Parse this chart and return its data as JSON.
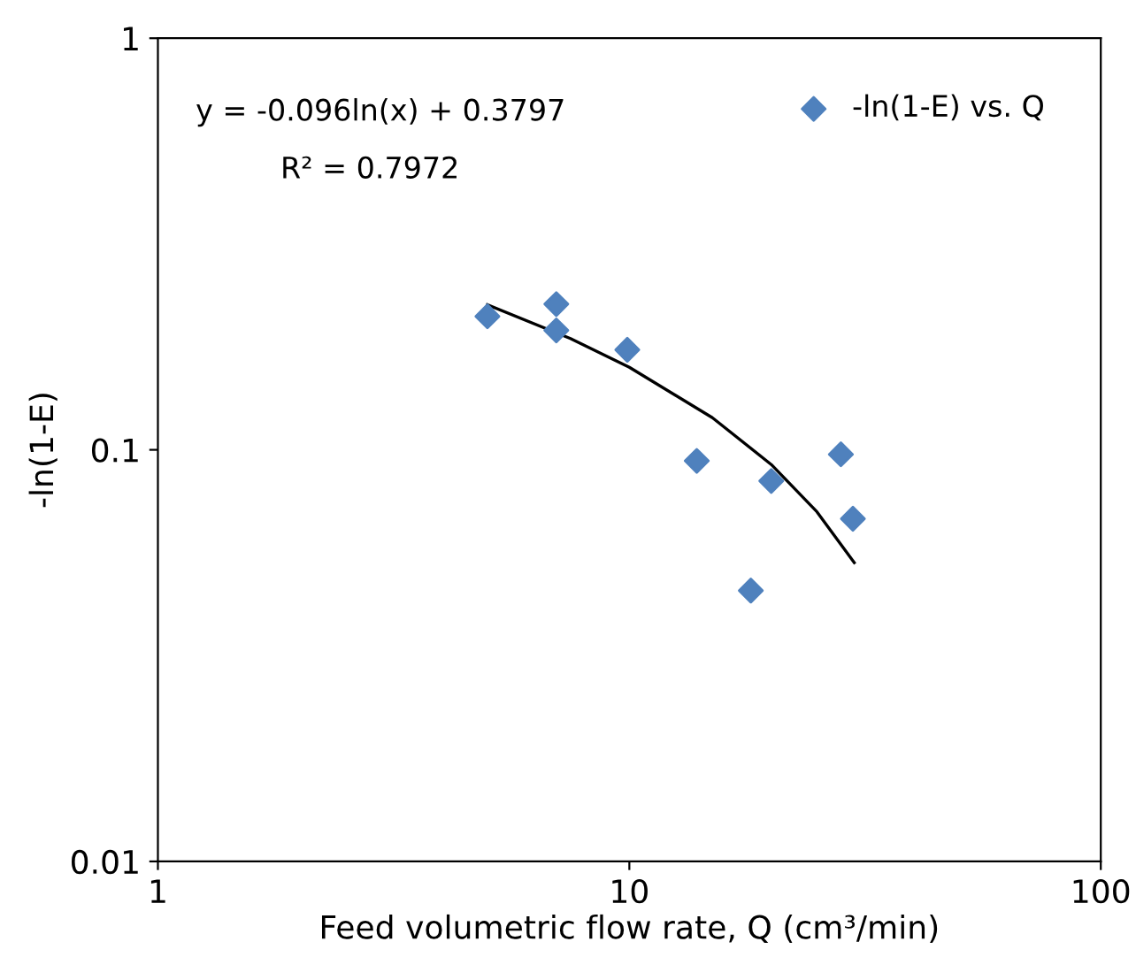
{
  "chart_data": {
    "type": "scatter",
    "xlabel": "Feed volumetric flow rate, Q (cm³/min)",
    "ylabel": "-ln(1-E)",
    "log": "xy",
    "xlim": [
      1,
      100
    ],
    "xticks": [
      1,
      10,
      100
    ],
    "ylim": [
      0.01,
      1
    ],
    "yticks": [
      0.01,
      0.1,
      1
    ],
    "grid": false,
    "legend": "top right",
    "marker": "diamond",
    "series": [
      {
        "name": "-ln(1-E) vs. Q",
        "color": "#4f81bd",
        "x": [
          5.0,
          7.0,
          7.0,
          9.9,
          13.9,
          18.1,
          20.0,
          28.1,
          29.8
        ],
        "values": [
          0.211,
          0.226,
          0.195,
          0.175,
          0.094,
          0.0455,
          0.084,
          0.0975,
          0.068
        ]
      },
      {
        "type": "line",
        "color": "#000000",
        "line_style": "solid",
        "marker": "none",
        "x": [
          5,
          7.5,
          10,
          15,
          20,
          25,
          30
        ],
        "values": [
          0.2252,
          0.1863,
          0.1587,
          0.1197,
          0.0921,
          0.0707,
          0.0532
        ]
      }
    ],
    "annotations": [
      {
        "text": "y = -0.096ln(x) + 0.3797"
      },
      {
        "text": "R² = 0.7972"
      }
    ]
  }
}
